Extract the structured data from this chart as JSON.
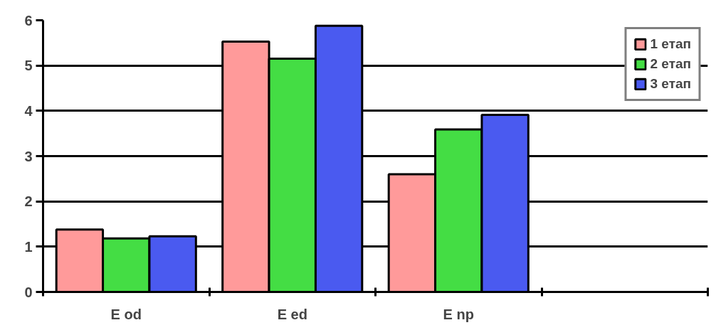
{
  "chart_data": {
    "type": "bar",
    "categories": [
      "E od",
      "E ed",
      "E np",
      null
    ],
    "series": [
      {
        "name": "1 етап",
        "color": "#ff9a9a",
        "values": [
          1.38,
          5.53,
          2.6,
          null
        ]
      },
      {
        "name": "2 етап",
        "color": "#44dd44",
        "values": [
          1.18,
          5.15,
          3.59,
          null
        ]
      },
      {
        "name": "3 етап",
        "color": "#4a5af0",
        "values": [
          1.23,
          5.88,
          3.91,
          null
        ]
      }
    ],
    "ylim": [
      0,
      6
    ],
    "yticks": [
      0,
      1,
      2,
      3,
      4,
      5,
      6
    ],
    "grid": "y",
    "legend": "top right"
  }
}
